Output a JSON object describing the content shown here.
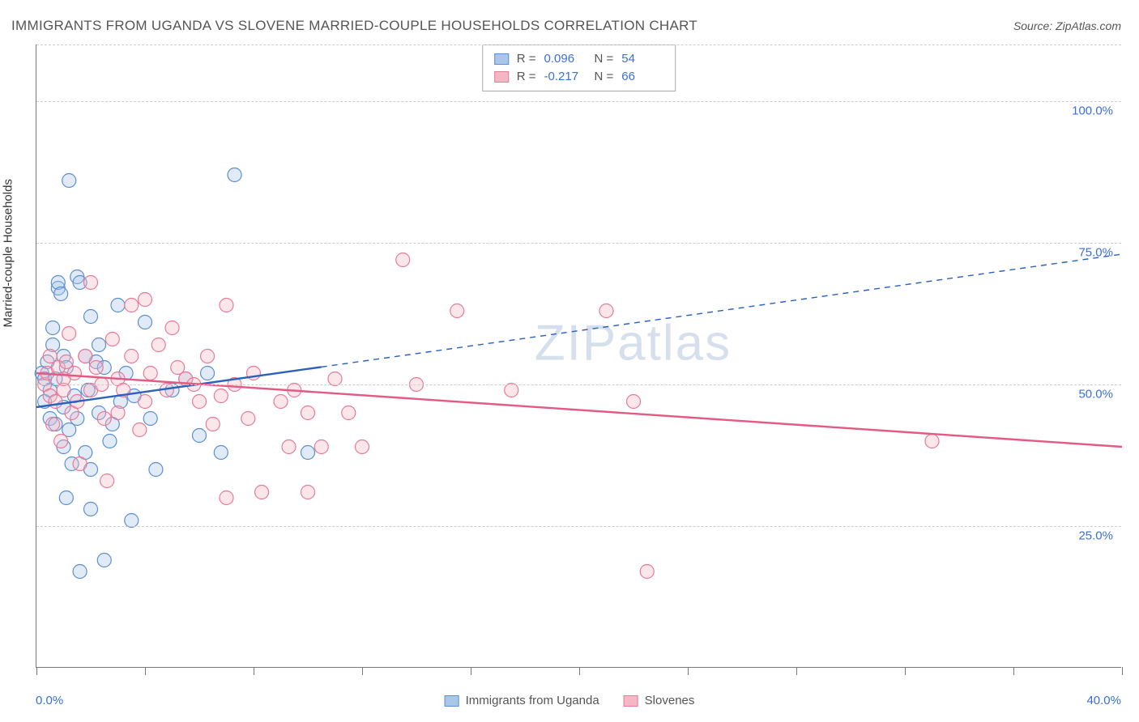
{
  "title": "IMMIGRANTS FROM UGANDA VS SLOVENE MARRIED-COUPLE HOUSEHOLDS CORRELATION CHART",
  "source_label": "Source: ZipAtlas.com",
  "watermark": "ZIPatlas",
  "chart": {
    "type": "scatter",
    "background_color": "#ffffff",
    "grid_color": "#cccccc",
    "axis_color": "#777777",
    "y_axis_title": "Married-couple Households",
    "y_axis_title_fontsize": 15,
    "xlim": [
      0,
      40
    ],
    "ylim": [
      0,
      110
    ],
    "x_tick_positions": [
      0,
      4,
      8,
      12,
      16,
      20,
      24,
      28,
      32,
      36,
      40
    ],
    "x_axis_min_label": "0.0%",
    "x_axis_max_label": "40.0%",
    "y_gridlines": [
      {
        "value": 25,
        "label": "25.0%"
      },
      {
        "value": 50,
        "label": "50.0%"
      },
      {
        "value": 75,
        "label": "75.0%"
      },
      {
        "value": 100,
        "label": "100.0%"
      },
      {
        "value": 110,
        "label": null
      }
    ],
    "tick_label_color": "#3b6fd6",
    "tick_label_fontsize": 15,
    "marker_radius": 8.5,
    "series": [
      {
        "name": "Immigrants from Uganda",
        "fill": "#a9c7ea",
        "stroke": "#5b8fd0",
        "r_value": "0.096",
        "n_value": "54",
        "trend": {
          "x1": 0.0,
          "y1": 46.0,
          "x2": 40.0,
          "y2": 73.0,
          "solid_until_x": 10.5,
          "color": "#2b62c0",
          "width": 2.4
        },
        "points": [
          [
            0.2,
            52
          ],
          [
            0.3,
            51
          ],
          [
            0.3,
            47
          ],
          [
            0.4,
            54
          ],
          [
            0.5,
            44
          ],
          [
            0.5,
            49
          ],
          [
            0.6,
            57
          ],
          [
            0.6,
            60
          ],
          [
            0.7,
            43
          ],
          [
            0.7,
            51
          ],
          [
            0.8,
            67
          ],
          [
            0.8,
            68
          ],
          [
            0.9,
            66
          ],
          [
            1.0,
            46
          ],
          [
            1.0,
            55
          ],
          [
            1.0,
            39
          ],
          [
            1.1,
            53
          ],
          [
            1.1,
            30
          ],
          [
            1.2,
            42
          ],
          [
            1.2,
            86
          ],
          [
            1.3,
            36
          ],
          [
            1.4,
            48
          ],
          [
            1.5,
            44
          ],
          [
            1.5,
            69
          ],
          [
            1.6,
            68
          ],
          [
            1.6,
            17
          ],
          [
            1.8,
            55
          ],
          [
            1.8,
            38
          ],
          [
            1.9,
            49
          ],
          [
            2.0,
            62
          ],
          [
            2.0,
            35
          ],
          [
            2.0,
            28
          ],
          [
            2.2,
            54
          ],
          [
            2.3,
            57
          ],
          [
            2.3,
            45
          ],
          [
            2.5,
            53
          ],
          [
            2.5,
            19
          ],
          [
            2.7,
            40
          ],
          [
            2.8,
            43
          ],
          [
            3.0,
            64
          ],
          [
            3.1,
            47
          ],
          [
            3.3,
            52
          ],
          [
            3.5,
            26
          ],
          [
            3.6,
            48
          ],
          [
            4.0,
            61
          ],
          [
            4.2,
            44
          ],
          [
            4.4,
            35
          ],
          [
            5.0,
            49
          ],
          [
            5.5,
            51
          ],
          [
            6.0,
            41
          ],
          [
            6.3,
            52
          ],
          [
            6.8,
            38
          ],
          [
            7.3,
            87
          ],
          [
            10.0,
            38
          ]
        ]
      },
      {
        "name": "Slovenes",
        "fill": "#f4b7c4",
        "stroke": "#e77a99",
        "r_value": "-0.217",
        "n_value": "66",
        "trend": {
          "x1": 0.0,
          "y1": 52.0,
          "x2": 40.0,
          "y2": 39.0,
          "solid_until_x": 40.0,
          "color": "#e35b85",
          "width": 2.4
        },
        "points": [
          [
            0.3,
            50
          ],
          [
            0.4,
            52
          ],
          [
            0.5,
            48
          ],
          [
            0.5,
            55
          ],
          [
            0.6,
            43
          ],
          [
            0.7,
            47
          ],
          [
            0.8,
            53
          ],
          [
            0.9,
            40
          ],
          [
            1.0,
            49
          ],
          [
            1.0,
            51
          ],
          [
            1.1,
            54
          ],
          [
            1.2,
            59
          ],
          [
            1.3,
            45
          ],
          [
            1.4,
            52
          ],
          [
            1.5,
            47
          ],
          [
            1.6,
            36
          ],
          [
            1.8,
            55
          ],
          [
            2.0,
            49
          ],
          [
            2.0,
            68
          ],
          [
            2.2,
            53
          ],
          [
            2.4,
            50
          ],
          [
            2.5,
            44
          ],
          [
            2.6,
            33
          ],
          [
            2.8,
            58
          ],
          [
            3.0,
            51
          ],
          [
            3.0,
            45
          ],
          [
            3.2,
            49
          ],
          [
            3.5,
            55
          ],
          [
            3.5,
            64
          ],
          [
            3.8,
            42
          ],
          [
            4.0,
            47
          ],
          [
            4.0,
            65
          ],
          [
            4.2,
            52
          ],
          [
            4.5,
            57
          ],
          [
            4.8,
            49
          ],
          [
            5.0,
            60
          ],
          [
            5.2,
            53
          ],
          [
            5.5,
            51
          ],
          [
            5.8,
            50
          ],
          [
            6.0,
            47
          ],
          [
            6.3,
            55
          ],
          [
            6.5,
            43
          ],
          [
            6.8,
            48
          ],
          [
            7.0,
            64
          ],
          [
            7.0,
            30
          ],
          [
            7.3,
            50
          ],
          [
            7.8,
            44
          ],
          [
            8.0,
            52
          ],
          [
            8.3,
            31
          ],
          [
            9.0,
            47
          ],
          [
            9.3,
            39
          ],
          [
            9.5,
            49
          ],
          [
            10.0,
            45
          ],
          [
            10.0,
            31
          ],
          [
            10.5,
            39
          ],
          [
            11.0,
            51
          ],
          [
            11.5,
            45
          ],
          [
            12.0,
            39
          ],
          [
            13.5,
            72
          ],
          [
            14.0,
            50
          ],
          [
            15.5,
            63
          ],
          [
            17.5,
            49
          ],
          [
            21.0,
            63
          ],
          [
            22.0,
            47
          ],
          [
            22.5,
            17
          ],
          [
            33.0,
            40
          ]
        ]
      }
    ]
  },
  "stats_legend": {
    "r_label": "R =",
    "n_label": "N ="
  },
  "bottom_legend_items": [
    "Immigrants from Uganda",
    "Slovenes"
  ]
}
